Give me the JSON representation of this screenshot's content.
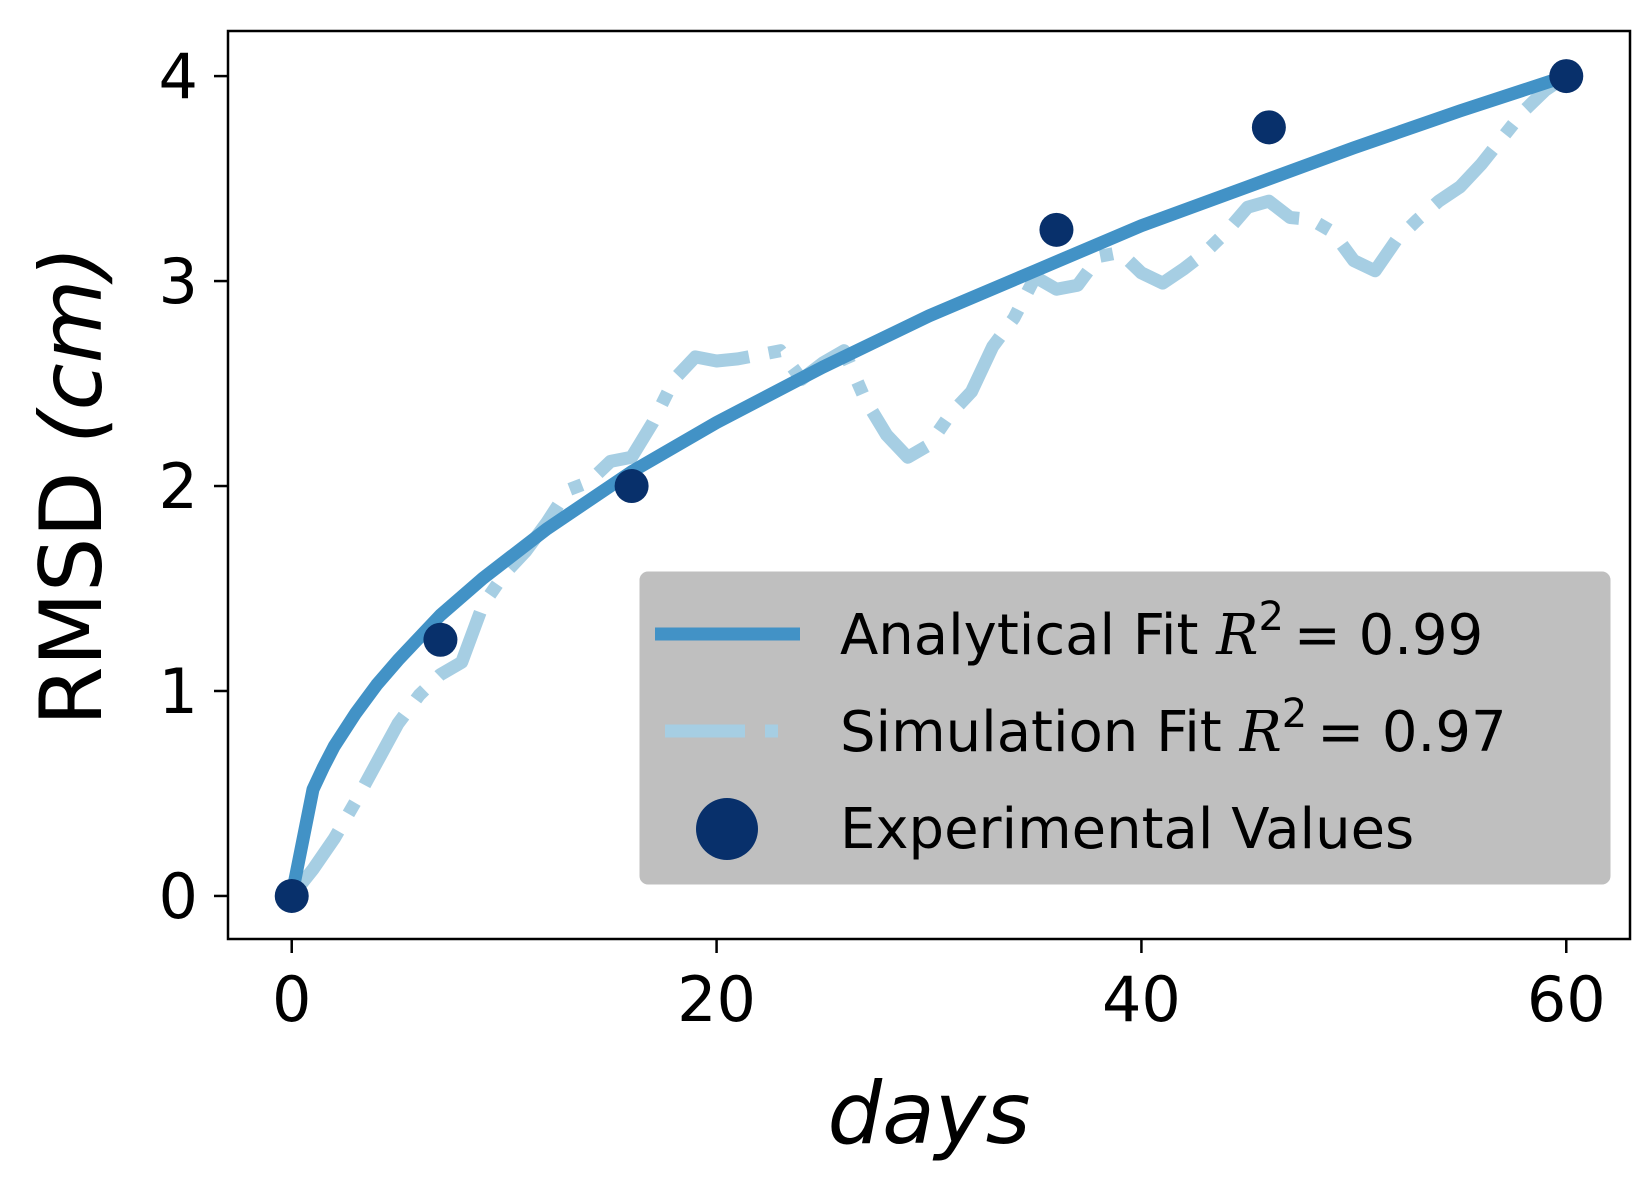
{
  "chart_data": {
    "type": "line",
    "xlabel": "days",
    "ylabel_text": "RMSD ",
    "ylabel_unit": "(cm)",
    "xlim": [
      -3,
      63
    ],
    "ylim": [
      -0.21,
      4.22
    ],
    "xticks": [
      0,
      20,
      40,
      60
    ],
    "yticks": [
      0,
      1,
      2,
      3,
      4
    ],
    "grid": false,
    "legend_position": "lower right",
    "colors": {
      "analytical": "#4292c6",
      "simulation": "#a6cee3",
      "experimental": "#08306b",
      "legend_bg": "#bfbfbf"
    },
    "series": [
      {
        "name": "Analytical Fit",
        "r2_label": "R",
        "r2_value": "= 0.99",
        "style": "solid",
        "x": [
          0,
          1,
          1.5,
          2,
          3,
          4,
          5,
          7,
          9,
          12,
          16,
          20,
          25,
          30,
          35,
          40,
          45,
          50,
          55,
          60
        ],
        "y": [
          0,
          0.52,
          0.63,
          0.73,
          0.89,
          1.03,
          1.15,
          1.37,
          1.55,
          1.79,
          2.07,
          2.31,
          2.58,
          2.83,
          3.05,
          3.27,
          3.46,
          3.65,
          3.83,
          4.0
        ]
      },
      {
        "name": "Simulation Fit",
        "r2_label": "R",
        "r2_value": "= 0.97",
        "style": "dashdot",
        "x": [
          0,
          1,
          2,
          3,
          4,
          5,
          6,
          7,
          8,
          9,
          10,
          11,
          12,
          13,
          14,
          15,
          16,
          17,
          18,
          19,
          20,
          21,
          22,
          23,
          24,
          25,
          26,
          27,
          28,
          29,
          30,
          31,
          32,
          33,
          34,
          35,
          36,
          37,
          38,
          39,
          40,
          41,
          42,
          43,
          44,
          45,
          46,
          47,
          48,
          49,
          50,
          51,
          52,
          53,
          54,
          55,
          56,
          57,
          58,
          59,
          60
        ],
        "y": [
          0,
          0.13,
          0.28,
          0.46,
          0.65,
          0.84,
          0.98,
          1.08,
          1.14,
          1.42,
          1.57,
          1.68,
          1.82,
          1.98,
          2.02,
          2.12,
          2.14,
          2.31,
          2.52,
          2.63,
          2.61,
          2.62,
          2.64,
          2.66,
          2.52,
          2.6,
          2.66,
          2.42,
          2.25,
          2.14,
          2.2,
          2.35,
          2.46,
          2.68,
          2.82,
          3.02,
          2.96,
          2.98,
          3.12,
          3.14,
          3.04,
          2.99,
          3.06,
          3.14,
          3.24,
          3.36,
          3.39,
          3.31,
          3.3,
          3.24,
          3.1,
          3.05,
          3.2,
          3.3,
          3.39,
          3.46,
          3.57,
          3.7,
          3.83,
          3.93,
          4.0
        ]
      },
      {
        "name": "Experimental Values",
        "style": "points",
        "x": [
          0,
          7,
          16,
          36,
          46,
          60
        ],
        "y": [
          0,
          1.25,
          2.0,
          3.25,
          3.75,
          4.0
        ]
      }
    ]
  }
}
